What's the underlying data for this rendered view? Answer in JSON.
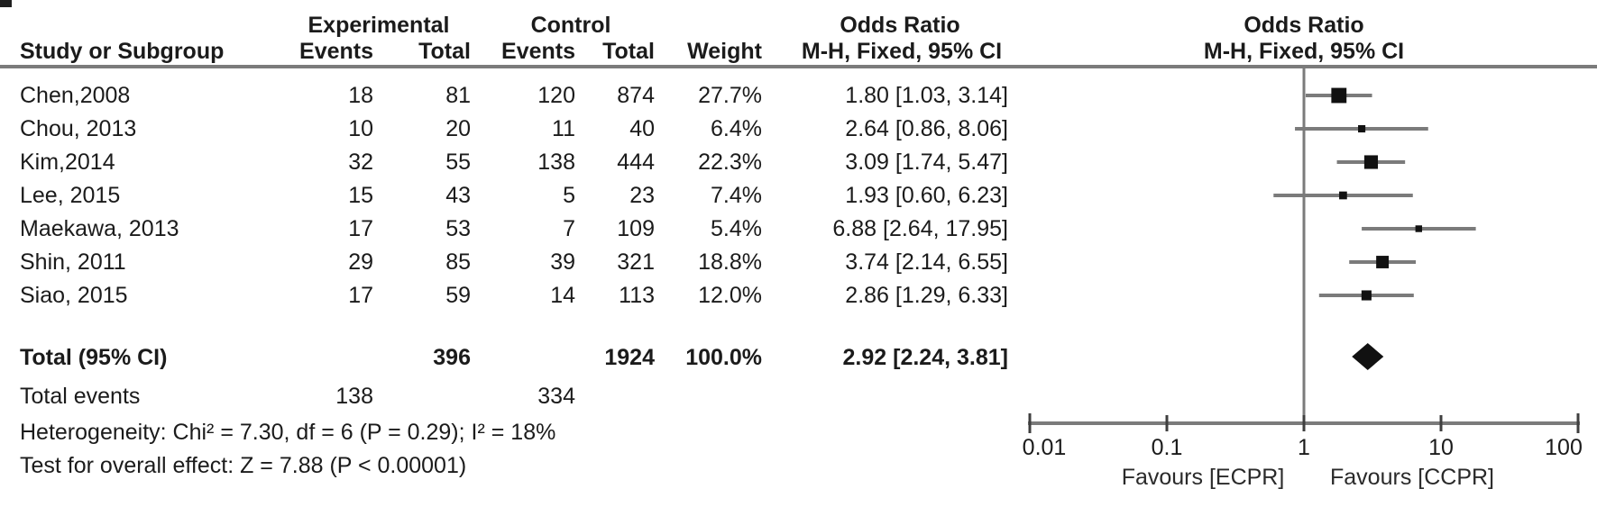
{
  "figure": {
    "columns": {
      "study": "Study or Subgroup",
      "exp_group": "Experimental",
      "ctrl_group": "Control",
      "events": "Events",
      "total": "Total",
      "weight": "Weight",
      "or_title": "Odds Ratio",
      "or_method": "M-H, Fixed, 95% CI"
    },
    "rows": [
      {
        "study": "Chen,2008",
        "exp_events": "18",
        "exp_total": "81",
        "ctrl_events": "120",
        "ctrl_total": "874",
        "weight": "27.7%",
        "or_ci": "1.80 [1.03, 3.14]"
      },
      {
        "study": "Chou, 2013",
        "exp_events": "10",
        "exp_total": "20",
        "ctrl_events": "11",
        "ctrl_total": "40",
        "weight": "6.4%",
        "or_ci": "2.64 [0.86, 8.06]"
      },
      {
        "study": "Kim,2014",
        "exp_events": "32",
        "exp_total": "55",
        "ctrl_events": "138",
        "ctrl_total": "444",
        "weight": "22.3%",
        "or_ci": "3.09 [1.74, 5.47]"
      },
      {
        "study": "Lee, 2015",
        "exp_events": "15",
        "exp_total": "43",
        "ctrl_events": "5",
        "ctrl_total": "23",
        "weight": "7.4%",
        "or_ci": "1.93 [0.60, 6.23]"
      },
      {
        "study": "Maekawa, 2013",
        "exp_events": "17",
        "exp_total": "53",
        "ctrl_events": "7",
        "ctrl_total": "109",
        "weight": "5.4%",
        "or_ci": "6.88 [2.64, 17.95]"
      },
      {
        "study": "Shin, 2011",
        "exp_events": "29",
        "exp_total": "85",
        "ctrl_events": "39",
        "ctrl_total": "321",
        "weight": "18.8%",
        "or_ci": "3.74 [2.14, 6.55]"
      },
      {
        "study": "Siao, 2015",
        "exp_events": "17",
        "exp_total": "59",
        "ctrl_events": "14",
        "ctrl_total": "113",
        "weight": "12.0%",
        "or_ci": "2.86 [1.29, 6.33]"
      }
    ],
    "total_row": {
      "label": "Total (95% CI)",
      "exp_total": "396",
      "ctrl_total": "1924",
      "weight": "100.0%",
      "or_ci": "2.92 [2.24, 3.81]"
    },
    "total_events": {
      "label": "Total events",
      "exp": "138",
      "ctrl": "334"
    },
    "heterogeneity": "Heterogeneity: Chi² = 7.30, df = 6 (P = 0.29); I² = 18%",
    "overall_effect": "Test for overall effect: Z = 7.88 (P < 0.00001)",
    "axis": {
      "tick_labels": [
        "0.01",
        "0.1",
        "1",
        "10",
        "100"
      ],
      "favours_left": "Favours [ECPR]",
      "favours_right": "Favours [CCPR]"
    }
  },
  "chart_data": {
    "type": "scatter",
    "subtype": "forest-plot",
    "title": "Odds Ratio M-H, Fixed, 95% CI",
    "x_scale": "log10",
    "xlim": [
      0.01,
      100
    ],
    "x_ticks": [
      0.01,
      0.1,
      1,
      10,
      100
    ],
    "no_effect_line": 1,
    "grid": false,
    "studies": [
      {
        "name": "Chen,2008",
        "or": 1.8,
        "ci_low": 1.03,
        "ci_high": 3.14,
        "weight_pct": 27.7
      },
      {
        "name": "Chou, 2013",
        "or": 2.64,
        "ci_low": 0.86,
        "ci_high": 8.06,
        "weight_pct": 6.4
      },
      {
        "name": "Kim,2014",
        "or": 3.09,
        "ci_low": 1.74,
        "ci_high": 5.47,
        "weight_pct": 22.3
      },
      {
        "name": "Lee, 2015",
        "or": 1.93,
        "ci_low": 0.6,
        "ci_high": 6.23,
        "weight_pct": 7.4
      },
      {
        "name": "Maekawa, 2013",
        "or": 6.88,
        "ci_low": 2.64,
        "ci_high": 17.95,
        "weight_pct": 5.4
      },
      {
        "name": "Shin, 2011",
        "or": 3.74,
        "ci_low": 2.14,
        "ci_high": 6.55,
        "weight_pct": 18.8
      },
      {
        "name": "Siao, 2015",
        "or": 2.86,
        "ci_low": 1.29,
        "ci_high": 6.33,
        "weight_pct": 12.0
      }
    ],
    "total": {
      "name": "Total (95% CI)",
      "or": 2.92,
      "ci_low": 2.24,
      "ci_high": 3.81,
      "weight_pct": 100.0
    },
    "colors": {
      "marker": "#111111",
      "ci_line": "#7b7b7b",
      "axis_line": "#7b7b7b",
      "tick": "#3f3f3f",
      "text": "#1b1b1b"
    }
  }
}
